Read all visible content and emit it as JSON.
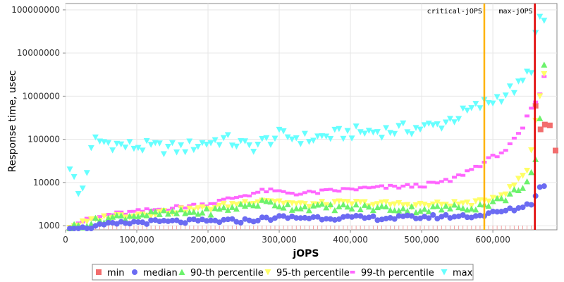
{
  "chart_data": {
    "type": "scatter",
    "title": "",
    "xlabel": "jOPS",
    "ylabel": "Response time, usec",
    "x_scale": "linear",
    "y_scale": "log",
    "xlim": [
      0,
      690000
    ],
    "ylim": [
      800,
      140000000
    ],
    "x_ticks": [
      0,
      100000,
      200000,
      300000,
      400000,
      500000,
      600000
    ],
    "x_tick_labels": [
      "0",
      "100,000",
      "200,000",
      "300,000",
      "400,000",
      "500,000",
      "600,000"
    ],
    "y_ticks": [
      1000,
      10000,
      100000,
      1000000,
      10000000,
      100000000
    ],
    "y_tick_labels": [
      "1000",
      "10000",
      "100000",
      "1000000",
      "10000000",
      "100000000"
    ],
    "grid": true,
    "legend_position": "bottom",
    "markers": [
      {
        "label": "critical-jOPS",
        "x": 588000,
        "color": "#ffb300"
      },
      {
        "label": "max-jOPS",
        "x": 659000,
        "color": "#e00000"
      }
    ],
    "series": [
      {
        "name": "min",
        "color": "#f26d6d",
        "shape": "square"
      },
      {
        "name": "median",
        "color": "#6b6bf2",
        "shape": "circle"
      },
      {
        "name": "90-th percentile",
        "color": "#6cf26c",
        "shape": "triangle-up"
      },
      {
        "name": "95-th percentile",
        "color": "#ffff66",
        "shape": "triangle-down"
      },
      {
        "name": "99-th percentile",
        "color": "#ff66ff",
        "shape": "square-small"
      },
      {
        "name": "max",
        "color": "#66ffff",
        "shape": "triangle-down"
      }
    ]
  }
}
